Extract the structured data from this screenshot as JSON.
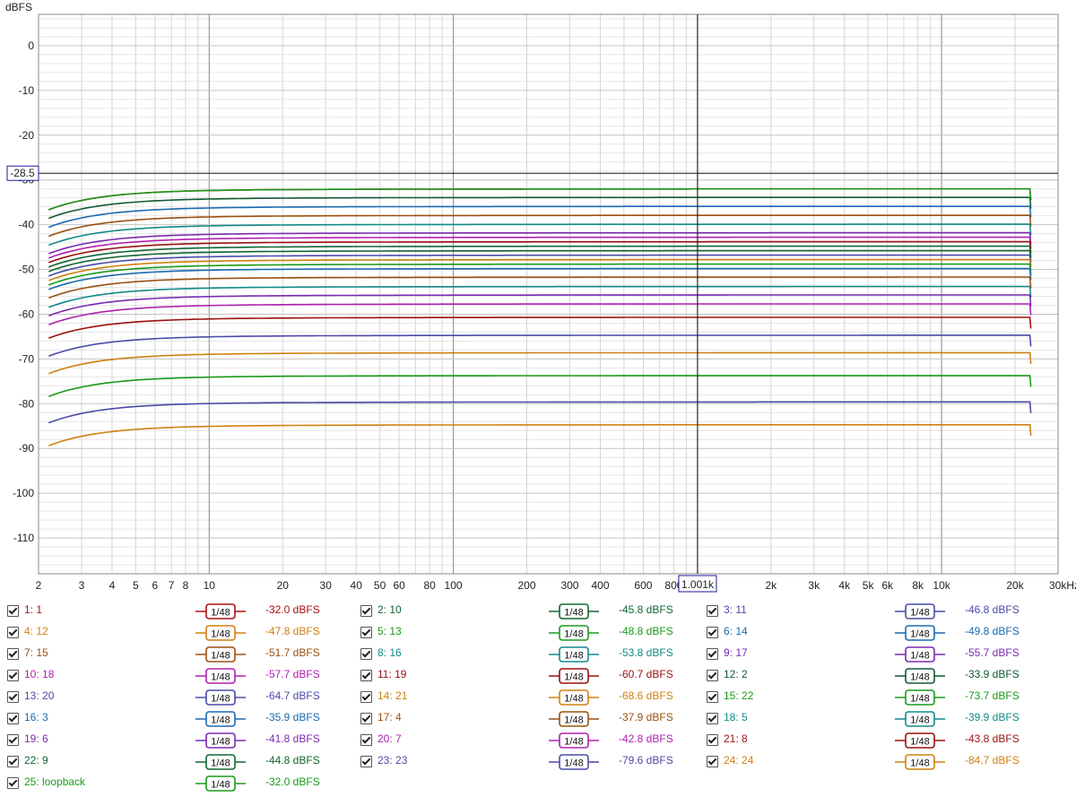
{
  "chart_data": {
    "type": "line",
    "ylabel": "dBFS",
    "xunit": "Hz",
    "ylim": [
      -118,
      7
    ],
    "xlim": [
      2,
      30000
    ],
    "x_scale": "log",
    "grid": true,
    "yticks": [
      "0",
      "-10",
      "-20",
      "-30",
      "-40",
      "-50",
      "-60",
      "-70",
      "-80",
      "-90",
      "-100",
      "-110"
    ],
    "ytick_values": [
      0,
      -10,
      -20,
      -30,
      -40,
      -50,
      -60,
      -70,
      -80,
      -90,
      -100,
      -110
    ],
    "xticks": [
      "2",
      "3",
      "4",
      "5",
      "6",
      "7",
      "8",
      "10",
      "20",
      "30",
      "40",
      "50",
      "60",
      "80",
      "100",
      "200",
      "300",
      "400",
      "600",
      "800",
      "2k",
      "3k",
      "4k",
      "5k",
      "6k",
      "8k",
      "10k",
      "20k",
      "30kHz"
    ],
    "xtick_values": [
      2,
      3,
      4,
      5,
      6,
      7,
      8,
      10,
      20,
      30,
      40,
      50,
      60,
      80,
      100,
      200,
      300,
      400,
      600,
      800,
      2000,
      3000,
      4000,
      5000,
      6000,
      8000,
      10000,
      20000,
      30000
    ],
    "cursor": {
      "x": 1001,
      "x_label": "1.001k",
      "y": -28.5,
      "y_label": "-28.5"
    },
    "series": [
      {
        "name": "1: 1",
        "level": -32.0,
        "value_label": "-32.0 dBFS",
        "smoothing": "1/48",
        "color": "#aa1111"
      },
      {
        "name": "2: 10",
        "level": -45.8,
        "value_label": "-45.8 dBFS",
        "smoothing": "1/48",
        "color": "#116633"
      },
      {
        "name": "3: 11",
        "level": -46.8,
        "value_label": "-46.8 dBFS",
        "smoothing": "1/48",
        "color": "#4a4aaa"
      },
      {
        "name": "4: 12",
        "level": -47.8,
        "value_label": "-47.8 dBFS",
        "smoothing": "1/48",
        "color": "#d08010"
      },
      {
        "name": "5: 13",
        "level": -48.8,
        "value_label": "-48.8 dBFS",
        "smoothing": "1/48",
        "color": "#1a9a1a"
      },
      {
        "name": "6: 14",
        "level": -49.8,
        "value_label": "-49.8 dBFS",
        "smoothing": "1/48",
        "color": "#1a6ab0"
      },
      {
        "name": "7: 15",
        "level": -51.7,
        "value_label": "-51.7 dBFS",
        "smoothing": "1/48",
        "color": "#9a5010"
      },
      {
        "name": "8: 16",
        "level": -53.8,
        "value_label": "-53.8 dBFS",
        "smoothing": "1/48",
        "color": "#128a8a"
      },
      {
        "name": "9: 17",
        "level": -55.7,
        "value_label": "-55.7 dBFS",
        "smoothing": "1/48",
        "color": "#7a2ab0"
      },
      {
        "name": "10: 18",
        "level": -57.7,
        "value_label": "-57.7 dBFS",
        "smoothing": "1/48",
        "color": "#b020b0"
      },
      {
        "name": "11: 19",
        "level": -60.7,
        "value_label": "-60.7 dBFS",
        "smoothing": "1/48",
        "color": "#9a1010"
      },
      {
        "name": "12: 2",
        "level": -33.9,
        "value_label": "-33.9 dBFS",
        "smoothing": "1/48",
        "color": "#115a33"
      },
      {
        "name": "13: 20",
        "level": -64.7,
        "value_label": "-64.7 dBFS",
        "smoothing": "1/48",
        "color": "#4a4aaa"
      },
      {
        "name": "14: 21",
        "level": -68.6,
        "value_label": "-68.6 dBFS",
        "smoothing": "1/48",
        "color": "#d08010"
      },
      {
        "name": "15: 22",
        "level": -73.7,
        "value_label": "-73.7 dBFS",
        "smoothing": "1/48",
        "color": "#1a9a1a"
      },
      {
        "name": "16: 3",
        "level": -35.9,
        "value_label": "-35.9 dBFS",
        "smoothing": "1/48",
        "color": "#1a6ab0"
      },
      {
        "name": "17: 4",
        "level": -37.9,
        "value_label": "-37.9 dBFS",
        "smoothing": "1/48",
        "color": "#9a5010"
      },
      {
        "name": "18: 5",
        "level": -39.9,
        "value_label": "-39.9 dBFS",
        "smoothing": "1/48",
        "color": "#128a8a"
      },
      {
        "name": "19: 6",
        "level": -41.8,
        "value_label": "-41.8 dBFS",
        "smoothing": "1/48",
        "color": "#7a2ab0"
      },
      {
        "name": "20: 7",
        "level": -42.8,
        "value_label": "-42.8 dBFS",
        "smoothing": "1/48",
        "color": "#b020b0"
      },
      {
        "name": "21: 8",
        "level": -43.8,
        "value_label": "-43.8 dBFS",
        "smoothing": "1/48",
        "color": "#9a1010"
      },
      {
        "name": "22: 9",
        "level": -44.8,
        "value_label": "-44.8 dBFS",
        "smoothing": "1/48",
        "color": "#116633"
      },
      {
        "name": "23: 23",
        "level": -79.6,
        "value_label": "-79.6 dBFS",
        "smoothing": "1/48",
        "color": "#4a4aaa"
      },
      {
        "name": "24: 24",
        "level": -84.7,
        "value_label": "-84.7 dBFS",
        "smoothing": "1/48",
        "color": "#d08010"
      },
      {
        "name": "25: loopback",
        "level": -32.0,
        "value_label": "-32.0 dBFS",
        "smoothing": "1/48",
        "color": "#1a9a1a"
      }
    ]
  },
  "legend_order": [
    0,
    1,
    2,
    3,
    4,
    5,
    6,
    7,
    8,
    9,
    10,
    11,
    12,
    13,
    14,
    15,
    16,
    17,
    18,
    19,
    20,
    21,
    22,
    23,
    24
  ]
}
